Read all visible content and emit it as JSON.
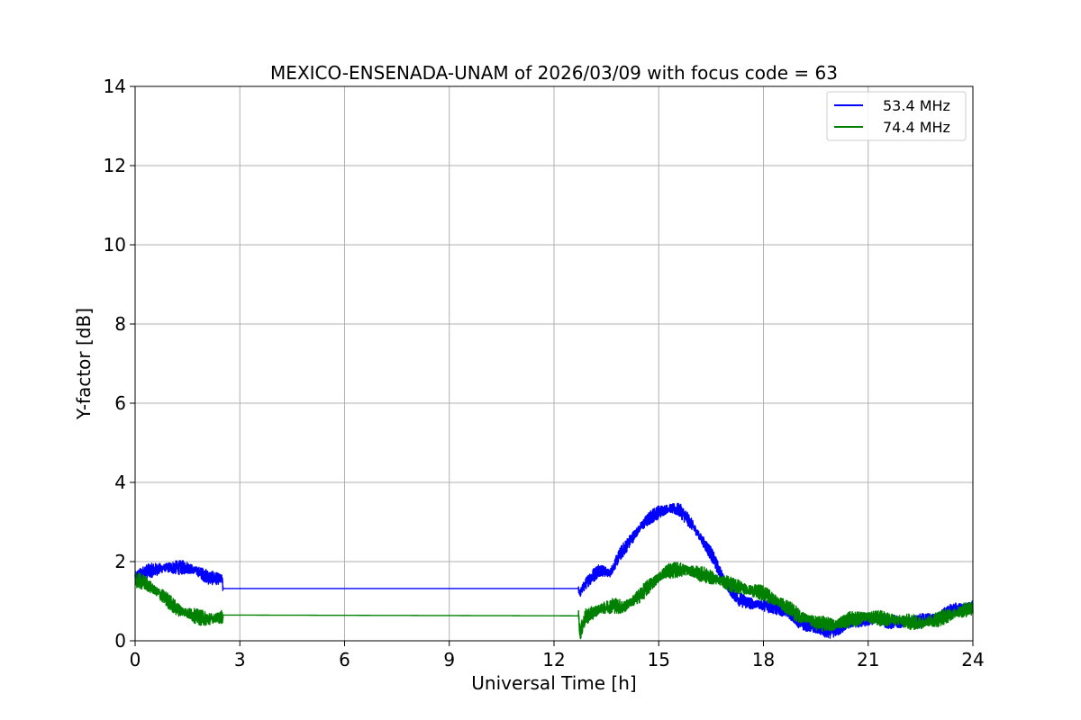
{
  "chart_data": {
    "type": "line",
    "title": "MEXICO-ENSENADA-UNAM of 2026/03/09 with focus code = 63",
    "xlabel": "Universal Time [h]",
    "ylabel": "Y-factor [dB]",
    "xlim": [
      0,
      24
    ],
    "ylim": [
      0,
      14
    ],
    "xticks": [
      0,
      3,
      6,
      9,
      12,
      15,
      18,
      21,
      24
    ],
    "yticks": [
      0,
      2,
      4,
      6,
      8,
      10,
      12,
      14
    ],
    "grid": true,
    "legend_position": "top-right",
    "series": [
      {
        "name": "53.4 MHz",
        "color": "#0000ff",
        "noise": 0.18,
        "points": [
          [
            0.0,
            1.65
          ],
          [
            0.3,
            1.75
          ],
          [
            0.6,
            1.8
          ],
          [
            0.9,
            1.85
          ],
          [
            1.2,
            1.85
          ],
          [
            1.5,
            1.85
          ],
          [
            1.8,
            1.75
          ],
          [
            2.1,
            1.6
          ],
          [
            2.5,
            1.55
          ],
          [
            2.51,
            1.32
          ],
          [
            12.7,
            1.32
          ],
          [
            12.75,
            1.2
          ],
          [
            12.8,
            1.3
          ],
          [
            13.0,
            1.55
          ],
          [
            13.3,
            1.8
          ],
          [
            13.6,
            1.7
          ],
          [
            13.9,
            2.2
          ],
          [
            14.2,
            2.55
          ],
          [
            14.5,
            2.9
          ],
          [
            14.8,
            3.15
          ],
          [
            15.0,
            3.25
          ],
          [
            15.3,
            3.35
          ],
          [
            15.6,
            3.3
          ],
          [
            15.9,
            3.0
          ],
          [
            16.2,
            2.6
          ],
          [
            16.5,
            2.2
          ],
          [
            16.8,
            1.65
          ],
          [
            17.0,
            1.3
          ],
          [
            17.3,
            1.05
          ],
          [
            17.6,
            0.95
          ],
          [
            18.0,
            0.9
          ],
          [
            18.3,
            0.85
          ],
          [
            18.7,
            0.7
          ],
          [
            19.0,
            0.5
          ],
          [
            19.5,
            0.3
          ],
          [
            19.8,
            0.22
          ],
          [
            20.2,
            0.3
          ],
          [
            20.6,
            0.5
          ],
          [
            21.0,
            0.55
          ],
          [
            21.5,
            0.5
          ],
          [
            22.0,
            0.45
          ],
          [
            22.5,
            0.5
          ],
          [
            23.0,
            0.6
          ],
          [
            23.5,
            0.8
          ],
          [
            24.0,
            0.85
          ]
        ]
      },
      {
        "name": "74.4 MHz",
        "color": "#008000",
        "noise": 0.2,
        "points": [
          [
            0.0,
            1.55
          ],
          [
            0.3,
            1.45
          ],
          [
            0.6,
            1.25
          ],
          [
            0.9,
            1.05
          ],
          [
            1.2,
            0.8
          ],
          [
            1.5,
            0.7
          ],
          [
            1.8,
            0.6
          ],
          [
            2.1,
            0.55
          ],
          [
            2.5,
            0.6
          ],
          [
            2.51,
            0.65
          ],
          [
            12.7,
            0.63
          ],
          [
            12.75,
            0.2
          ],
          [
            12.9,
            0.6
          ],
          [
            13.3,
            0.8
          ],
          [
            13.7,
            0.9
          ],
          [
            14.0,
            0.85
          ],
          [
            14.4,
            1.1
          ],
          [
            14.8,
            1.45
          ],
          [
            15.2,
            1.75
          ],
          [
            15.6,
            1.8
          ],
          [
            16.0,
            1.75
          ],
          [
            16.5,
            1.6
          ],
          [
            17.0,
            1.45
          ],
          [
            17.5,
            1.3
          ],
          [
            18.0,
            1.2
          ],
          [
            18.5,
            0.95
          ],
          [
            19.0,
            0.65
          ],
          [
            19.5,
            0.45
          ],
          [
            20.0,
            0.4
          ],
          [
            20.5,
            0.55
          ],
          [
            21.0,
            0.6
          ],
          [
            21.5,
            0.55
          ],
          [
            22.0,
            0.5
          ],
          [
            22.5,
            0.45
          ],
          [
            23.0,
            0.55
          ],
          [
            23.5,
            0.7
          ],
          [
            24.0,
            0.85
          ]
        ]
      }
    ]
  }
}
